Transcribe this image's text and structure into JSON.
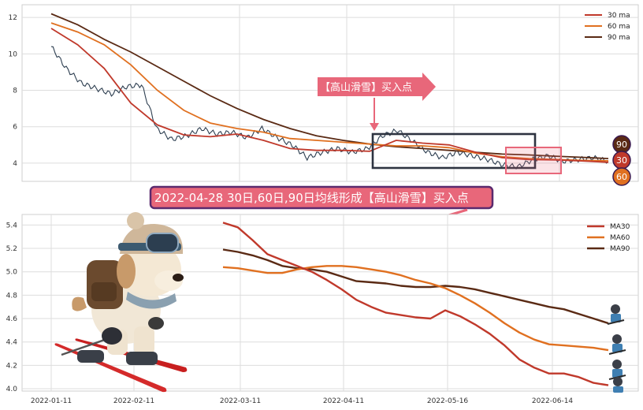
{
  "colors": {
    "ma30": "#c0392b",
    "ma60": "#e07020",
    "ma90": "#5a2a14",
    "price": "#2d3e50",
    "callout": "#e8677a",
    "banner_bg": "#e8677a",
    "banner_border": "#5a2a6e",
    "box_dark": "#2d3340",
    "box_pink": "#e8677a"
  },
  "chart_data": [
    {
      "type": "line",
      "panel": "top",
      "x_ticks": [],
      "y_ticks": [
        "4",
        "6",
        "8",
        "10",
        "12"
      ],
      "ylim": [
        3.0,
        12.7
      ],
      "grid": true,
      "legend_placement": "top-right",
      "legend": [
        {
          "name": "30 ma",
          "color_key": "ma30"
        },
        {
          "name": "60 ma",
          "color_key": "ma60"
        },
        {
          "name": "90 ma",
          "color_key": "ma90"
        }
      ],
      "series": [
        {
          "key": "ma90",
          "name": "90 ma",
          "values": [
            12.2,
            11.6,
            10.8,
            10.1,
            9.3,
            8.5,
            7.7,
            7.0,
            6.4,
            5.9,
            5.5,
            5.25,
            5.05,
            4.9,
            4.8,
            4.7,
            4.6,
            4.5,
            4.45,
            4.38,
            4.32,
            4.25
          ]
        },
        {
          "key": "ma60",
          "name": "60 ma",
          "values": [
            11.7,
            11.2,
            10.5,
            9.4,
            8.0,
            6.9,
            6.2,
            5.9,
            5.7,
            5.35,
            5.25,
            5.15,
            5.05,
            4.95,
            4.95,
            4.85,
            4.55,
            4.35,
            4.25,
            4.2,
            4.15,
            4.13
          ]
        },
        {
          "key": "ma30",
          "name": "30 ma",
          "values": [
            11.4,
            10.5,
            9.2,
            7.3,
            6.1,
            5.55,
            5.45,
            5.6,
            5.25,
            4.8,
            4.7,
            4.7,
            4.65,
            5.25,
            5.1,
            5.0,
            4.6,
            4.3,
            4.2,
            4.18,
            4.12,
            4.05
          ]
        },
        {
          "key": "price",
          "name": "",
          "values": [
            10.4,
            9.2,
            8.4,
            8.1,
            7.8,
            8.2,
            8.3,
            5.9,
            5.3,
            5.5,
            5.9,
            5.6,
            5.7,
            5.4,
            5.9,
            5.4,
            5.0,
            4.3,
            4.6,
            4.8,
            4.6,
            4.8,
            5.5,
            5.8,
            5.2,
            4.6,
            4.3,
            4.6,
            4.4,
            4.2,
            3.9,
            3.8,
            4.2,
            4.4,
            4.1,
            4.2,
            4.3,
            4.1
          ]
        }
      ],
      "ma_badges": [
        {
          "label": "90",
          "color_key": "ma90"
        },
        {
          "label": "30",
          "color_key": "ma30"
        },
        {
          "label": "60",
          "color_key": "ma60"
        }
      ],
      "callout": {
        "label": "【高山滑雪】买入点"
      }
    },
    {
      "type": "line",
      "panel": "bottom",
      "x_ticks": [
        "2022-01-11",
        "2022-02-11",
        "2022-03-11",
        "2022-04-11",
        "2022-05-16",
        "2022-06-14"
      ],
      "y_ticks": [
        "4.0",
        "4.2",
        "4.4",
        "4.6",
        "4.8",
        "5.0",
        "5.2",
        "5.4"
      ],
      "ylim": [
        3.98,
        5.49
      ],
      "grid": true,
      "legend_placement": "top-right",
      "legend": [
        {
          "name": "MA30",
          "color_key": "ma30"
        },
        {
          "name": "MA60",
          "color_key": "ma60"
        },
        {
          "name": "MA90",
          "color_key": "ma90"
        }
      ],
      "series": [
        {
          "key": "ma30",
          "name": "MA30",
          "values": [
            5.42,
            5.38,
            5.27,
            5.15,
            5.1,
            5.05,
            5.0,
            4.93,
            4.85,
            4.76,
            4.7,
            4.65,
            4.63,
            4.61,
            4.6,
            4.67,
            4.62,
            4.55,
            4.47,
            4.37,
            4.25,
            4.18,
            4.13,
            4.13,
            4.1,
            4.05,
            4.03
          ]
        },
        {
          "key": "ma60",
          "name": "MA60",
          "values": [
            5.04,
            5.03,
            5.01,
            4.99,
            4.99,
            5.02,
            5.04,
            5.05,
            5.05,
            5.04,
            5.02,
            5.0,
            4.97,
            4.93,
            4.9,
            4.86,
            4.8,
            4.73,
            4.65,
            4.56,
            4.48,
            4.42,
            4.38,
            4.37,
            4.36,
            4.35,
            4.33
          ]
        },
        {
          "key": "ma90",
          "name": "MA90",
          "values": [
            5.19,
            5.17,
            5.14,
            5.1,
            5.05,
            5.03,
            5.02,
            5.0,
            4.96,
            4.92,
            4.91,
            4.9,
            4.88,
            4.87,
            4.87,
            4.88,
            4.87,
            4.85,
            4.82,
            4.79,
            4.76,
            4.73,
            4.7,
            4.68,
            4.64,
            4.6,
            4.56
          ]
        }
      ]
    }
  ],
  "annotation_banner": {
    "label": "2022-04-28 30日,60日,90日均线形成【高山滑雪】买入点"
  },
  "mascot_icon": "skiing-dog-icon",
  "skier_icon": "skier-figure-icon"
}
